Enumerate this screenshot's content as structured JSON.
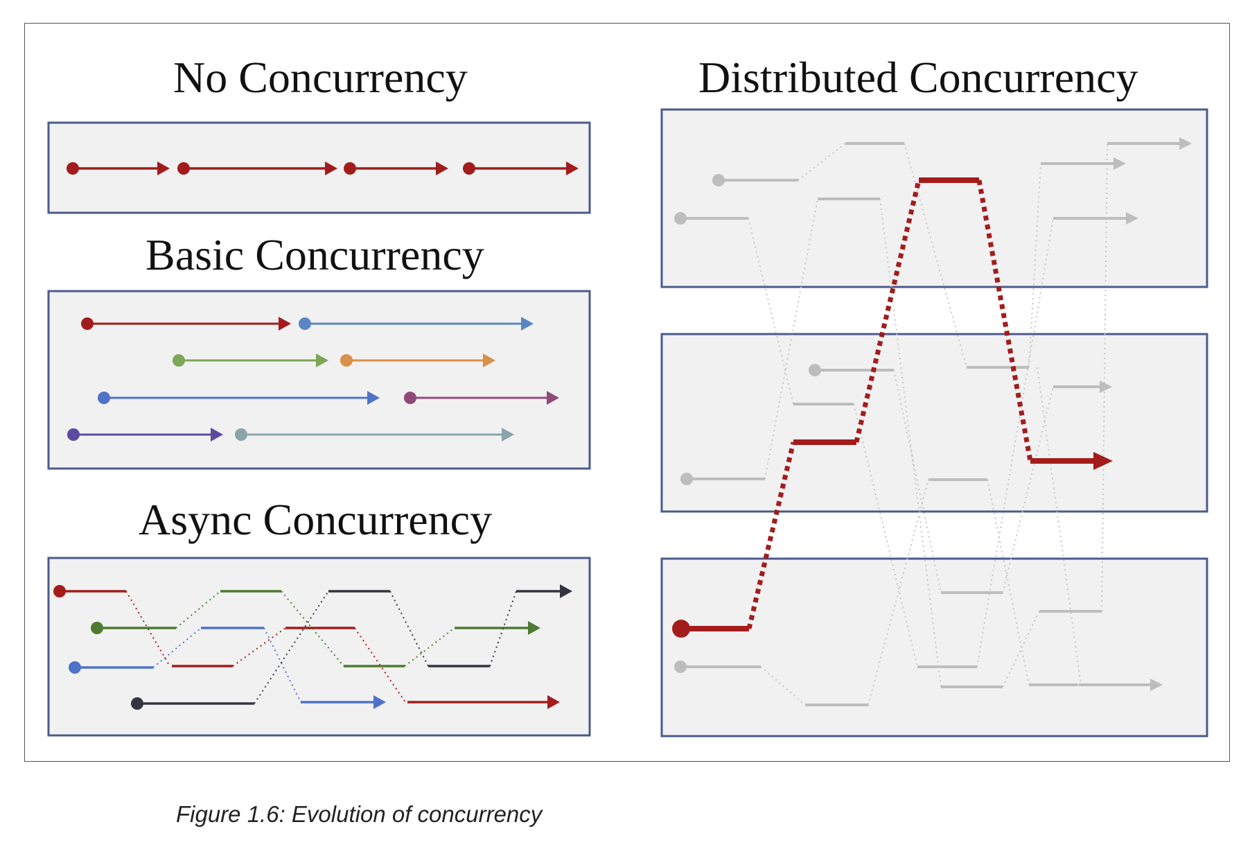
{
  "figure": {
    "caption": "Figure 1.6: Evolution of concurrency"
  },
  "panels": {
    "no_concurrency": {
      "title": "No Concurrency",
      "tasks": [
        {
          "color": "#a31c1c",
          "arrow": true
        },
        {
          "color": "#a31c1c",
          "arrow": true
        },
        {
          "color": "#a31c1c",
          "arrow": true
        },
        {
          "color": "#a31c1c",
          "arrow": true
        }
      ]
    },
    "basic_concurrency": {
      "title": "Basic Concurrency",
      "tasks": [
        {
          "color": "#a31c1c"
        },
        {
          "color": "#5b86c4"
        },
        {
          "color": "#7da657"
        },
        {
          "color": "#d8904a"
        },
        {
          "color": "#4f72c9"
        },
        {
          "color": "#8e4a78"
        },
        {
          "color": "#5b4a9e"
        },
        {
          "color": "#8aa4ac"
        }
      ]
    },
    "async_concurrency": {
      "title": "Async Concurrency",
      "tasks": [
        {
          "color": "#a31c1c"
        },
        {
          "color": "#4e7a32"
        },
        {
          "color": "#4f72c9"
        },
        {
          "color": "#33363f"
        }
      ]
    },
    "distributed_concurrency": {
      "title": "Distributed Concurrency",
      "nodes": 3,
      "highlight_color": "#a31c1c",
      "background_task_color": "#bdbdbd"
    }
  },
  "colors": {
    "panel_fill": "#f1f1f1",
    "panel_border": "#4a5a8c",
    "title_text": "#111111",
    "caption_text": "#222222"
  }
}
